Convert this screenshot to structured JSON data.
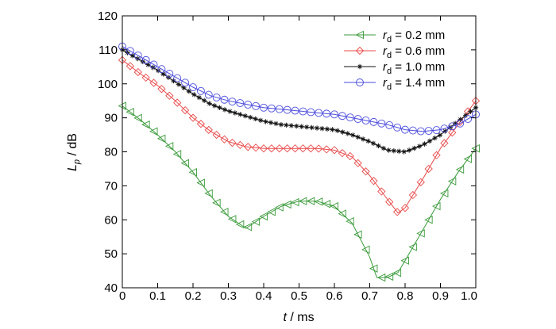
{
  "chart_data": {
    "type": "line",
    "title": "",
    "xlabel": {
      "symbol": "t",
      "unit": "ms"
    },
    "ylabel": {
      "symbol": "L",
      "subscript": "p",
      "unit": "dB"
    },
    "xlim": [
      0,
      1.0
    ],
    "ylim": [
      40,
      120
    ],
    "xticks": [
      "0",
      "0.1",
      "0.2",
      "0.3",
      "0.4",
      "0.5",
      "0.6",
      "0.7",
      "0.8",
      "0.9",
      "1.0"
    ],
    "xtick_values": [
      0,
      0.1,
      0.2,
      0.3,
      0.4,
      0.5,
      0.6,
      0.7,
      0.8,
      0.9,
      1.0
    ],
    "yticks": [
      "40",
      "50",
      "60",
      "70",
      "80",
      "90",
      "100",
      "110",
      "120"
    ],
    "ytick_values": [
      40,
      50,
      60,
      70,
      80,
      90,
      100,
      110,
      120
    ],
    "grid": false,
    "legend_position": "top-right",
    "series": [
      {
        "name": "0.2 mm",
        "legend_var": "r",
        "legend_sub": "d",
        "color": "#3a9a3a",
        "marker": "triangle-left",
        "x": [
          0,
          0.05,
          0.1,
          0.15,
          0.2,
          0.25,
          0.3,
          0.35,
          0.4,
          0.45,
          0.5,
          0.55,
          0.6,
          0.65,
          0.7,
          0.72,
          0.75,
          0.78,
          0.8,
          0.85,
          0.9,
          0.95,
          1.0
        ],
        "y": [
          93.5,
          89.5,
          85,
          80,
          74,
          67,
          61,
          57.5,
          61,
          64,
          65.5,
          65.5,
          64,
          59,
          49,
          43,
          43,
          44.5,
          48,
          57,
          66,
          74,
          81
        ]
      },
      {
        "name": "0.6 mm",
        "legend_var": "r",
        "legend_sub": "d",
        "color": "#e84a4a",
        "marker": "diamond",
        "x": [
          0,
          0.05,
          0.1,
          0.15,
          0.2,
          0.25,
          0.3,
          0.35,
          0.4,
          0.45,
          0.5,
          0.55,
          0.6,
          0.65,
          0.7,
          0.75,
          0.78,
          0.8,
          0.85,
          0.9,
          0.95,
          1.0
        ],
        "y": [
          107,
          103,
          99.5,
          95,
          90,
          86,
          83,
          81.5,
          81,
          81,
          81,
          81,
          80.5,
          78.5,
          73,
          66,
          62,
          63.5,
          72,
          81,
          88,
          95
        ]
      },
      {
        "name": "1.0 mm",
        "legend_var": "r",
        "legend_sub": "d",
        "color": "#111111",
        "marker": "star",
        "x": [
          0,
          0.05,
          0.1,
          0.15,
          0.2,
          0.25,
          0.3,
          0.35,
          0.4,
          0.45,
          0.5,
          0.55,
          0.6,
          0.65,
          0.7,
          0.75,
          0.8,
          0.85,
          0.9,
          0.95,
          1.0
        ],
        "y": [
          110,
          107,
          104,
          100.5,
          97,
          94,
          92,
          90.5,
          89,
          88,
          87.5,
          87,
          86.5,
          85,
          83,
          80.5,
          80,
          82,
          85,
          89,
          93
        ]
      },
      {
        "name": "1.4 mm",
        "legend_var": "r",
        "legend_sub": "d",
        "color": "#4b4bdc",
        "marker": "circle",
        "x": [
          0,
          0.05,
          0.1,
          0.15,
          0.2,
          0.25,
          0.3,
          0.35,
          0.4,
          0.45,
          0.5,
          0.55,
          0.6,
          0.65,
          0.7,
          0.75,
          0.8,
          0.85,
          0.9,
          0.95,
          1.0
        ],
        "y": [
          111,
          108,
          105,
          102,
          99,
          96.5,
          95,
          94,
          93,
          92.5,
          92,
          91.5,
          91,
          90,
          89,
          88,
          86.5,
          86,
          86.5,
          88,
          91
        ]
      }
    ]
  }
}
